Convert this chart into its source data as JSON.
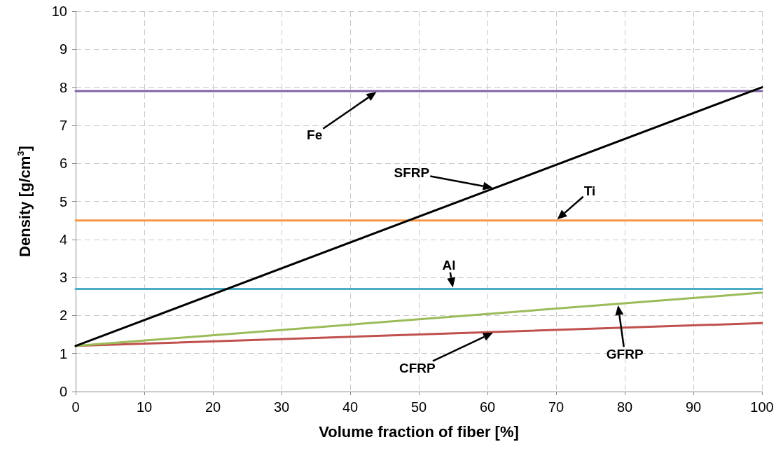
{
  "chart_data": {
    "type": "line",
    "xlabel": "Volume fraction of fiber [%]",
    "ylabel": "Density [g/cm$^{3}$]",
    "x": [
      0,
      100
    ],
    "series": [
      {
        "color": "#8064a2",
        "values": [
          7.9,
          7.9
        ]
      },
      {
        "color": "#f79646",
        "values": [
          4.5,
          4.5
        ]
      },
      {
        "color": "#4bacc6",
        "values": [
          2.7,
          2.7
        ]
      },
      {
        "color": "#c0504d",
        "values": [
          1.2,
          1.8
        ]
      },
      {
        "color": "#9bbb59",
        "values": [
          1.2,
          2.6
        ]
      },
      {
        "color": "#000000",
        "values": [
          1.2,
          8.0
        ]
      }
    ],
    "xlim": [
      0,
      100
    ],
    "xticks": [
      0,
      10,
      20,
      30,
      40,
      50,
      60,
      70,
      80,
      90,
      100
    ],
    "ylim": [
      0,
      10
    ],
    "yticks": [
      0,
      1,
      2,
      3,
      4,
      5,
      6,
      7,
      8,
      9,
      10
    ],
    "grid": true,
    "marker": "none",
    "line_style": "solid",
    "annotations": [
      "Fe",
      "SFRP",
      "Ti",
      "Al",
      "CFRP",
      "GFRP"
    ]
  }
}
